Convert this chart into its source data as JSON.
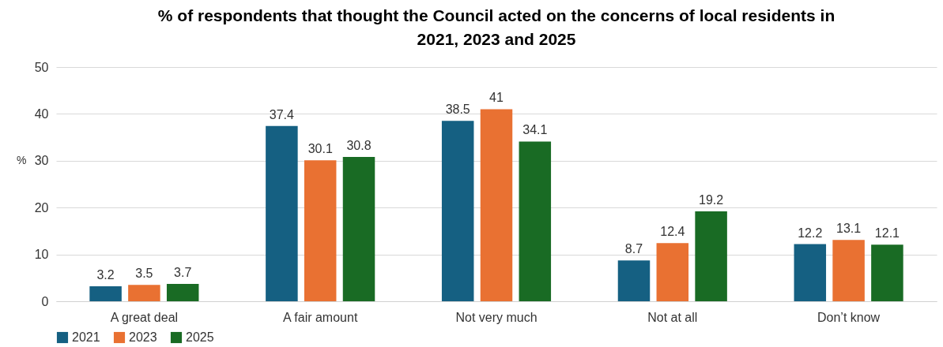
{
  "chart_data": {
    "type": "bar",
    "title": "% of respondents that thought the Council acted on the concerns of local residents in 2021, 2023 and 2025",
    "ylabel": "%",
    "categories": [
      "A great deal",
      "A fair amount",
      "Not very much",
      "Not at all",
      "Don’t know"
    ],
    "series": [
      {
        "name": "2021",
        "color": "#156082",
        "values": [
          3.2,
          37.4,
          38.5,
          8.7,
          12.2
        ]
      },
      {
        "name": "2023",
        "color": "#e97132",
        "values": [
          3.5,
          30.1,
          41,
          12.4,
          13.1
        ]
      },
      {
        "name": "2025",
        "color": "#196b24",
        "values": [
          3.7,
          30.8,
          34.1,
          19.2,
          12.1
        ]
      }
    ],
    "ylim": [
      0,
      50
    ],
    "yticks": [
      0,
      10,
      20,
      30,
      40,
      50
    ],
    "grid": "y",
    "legend": "bottom",
    "data_labels": true
  }
}
